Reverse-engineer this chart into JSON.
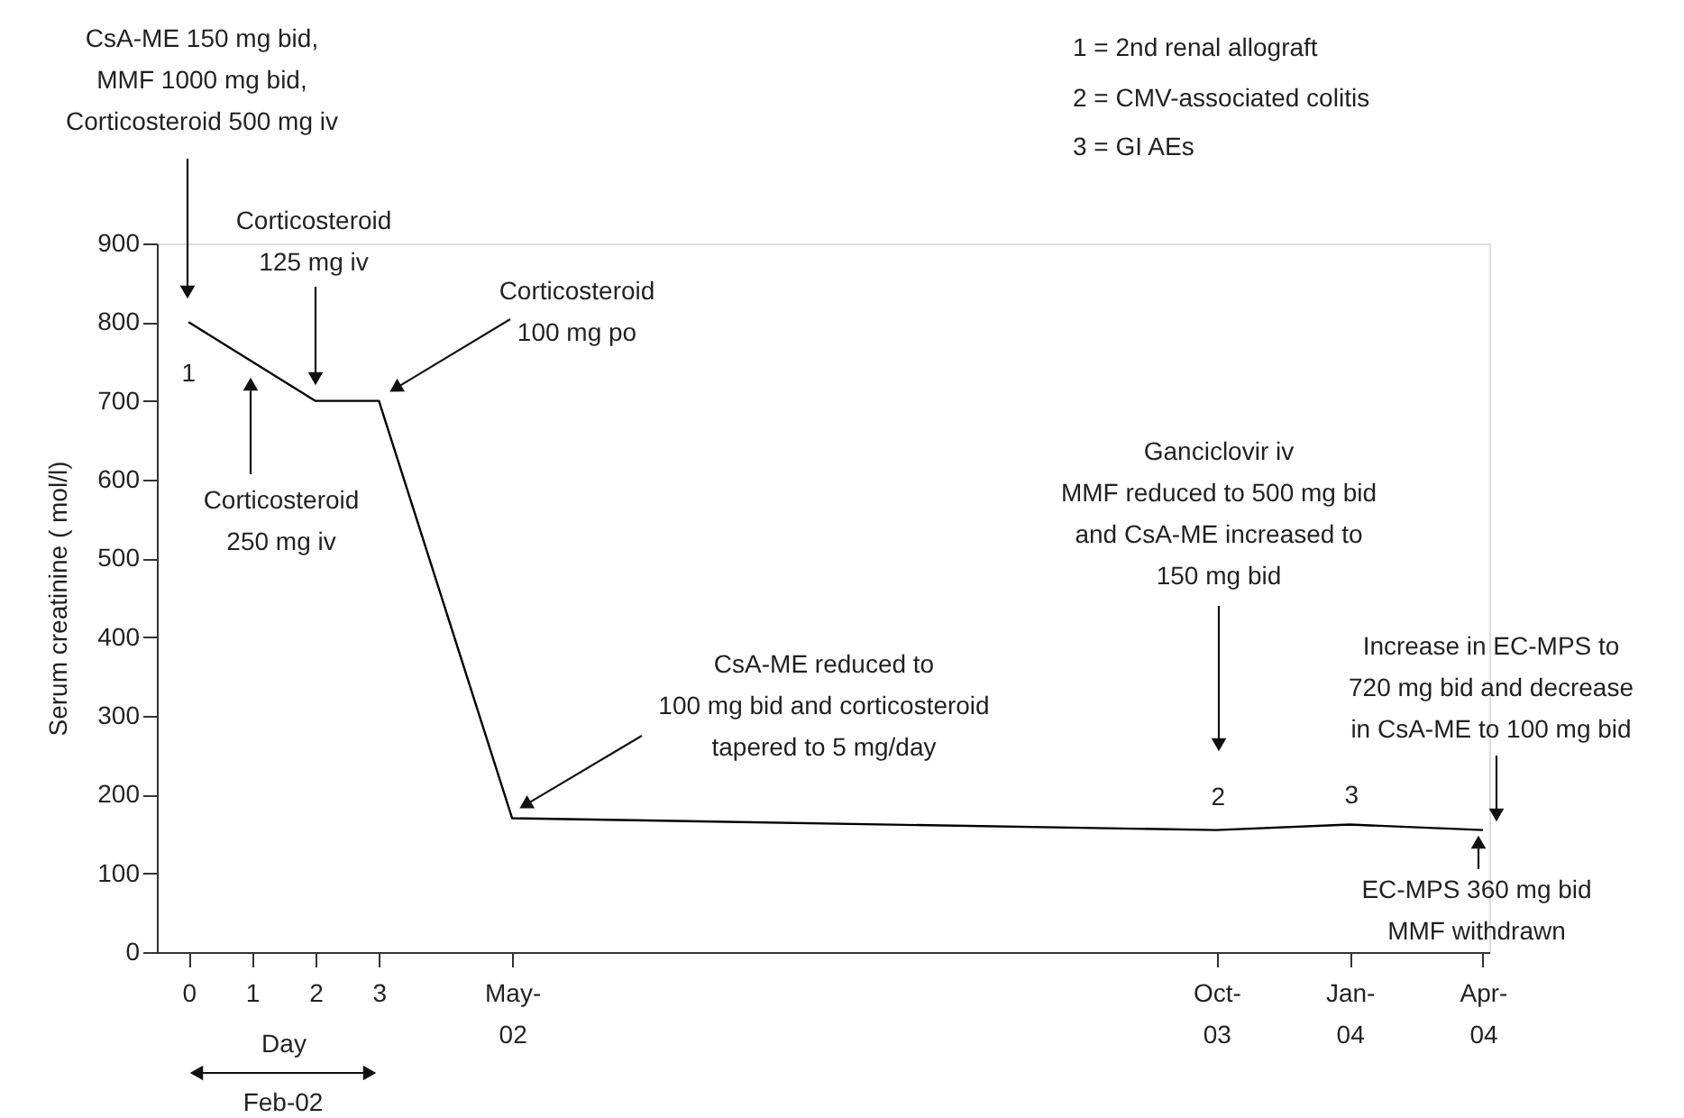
{
  "chart_data": {
    "type": "line",
    "ylabel": "Serum creatinine (  mol/l)",
    "xlabel": "Day",
    "x": [
      0,
      2,
      3,
      5.1,
      16.2,
      18.3,
      20.4
    ],
    "series": [
      {
        "color": "#000000",
        "values": [
          800,
          700,
          700,
          170,
          155,
          162,
          155
        ]
      }
    ],
    "xlim": [
      -0.5,
      20.5
    ],
    "xticks": [
      0,
      1,
      2,
      3,
      {
        "value": 5.1,
        "label": "May-02"
      },
      {
        "value": 16.2,
        "label": "Oct-03"
      },
      {
        "value": 18.3,
        "label": "Jan-04"
      },
      {
        "value": 20.4,
        "label": "Apr-04"
      }
    ],
    "ylim": [
      0,
      900
    ],
    "yticks": [
      0,
      100,
      200,
      300,
      400,
      500,
      600,
      700,
      800,
      900
    ],
    "grid": false,
    "marker": "none",
    "line_style": "solid",
    "annotations": [
      "CsA-ME 150 mg bid,\nMMF 1000 mg bid,\nCorticosteroid 500 mg iv",
      "Corticosteroid\n125 mg iv",
      "Corticosteroid\n250 mg iv",
      "Corticosteroid\n100 mg po",
      "CsA-ME reduced to\n100 mg bid and corticosteroid\ntapered to 5 mg/day",
      "Ganciclovir iv\nMMF reduced to 500 mg bid\nand CsA-ME increased to\n150 mg bid",
      "Increase in EC-MPS to\n720 mg bid and decrease\nin CsA-ME to 100 mg bid",
      "EC-MPS 360 mg bid\nMMF withdrawn",
      {
        "text": "1",
        "x": 0,
        "y": 800
      },
      {
        "text": "2",
        "x": 16.2,
        "y": 155
      },
      {
        "text": "3",
        "x": 18.3,
        "y": 162
      },
      "1 = 2nd renal allograft",
      "2 = CMV-associated colitis",
      "3 = GI AEs",
      "Feb-02"
    ]
  }
}
